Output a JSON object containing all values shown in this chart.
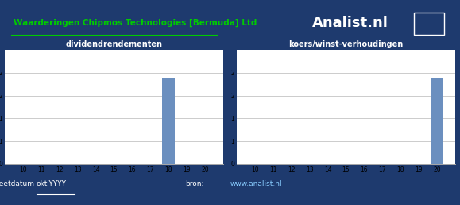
{
  "title": "Waarderingen Chipmos Technologies [Bermuda] Ltd",
  "brand": "Analist.nl",
  "chart1_title": "dividendrendementen",
  "chart2_title": "koers/winst-verhoudingen",
  "x_labels": [
    "10",
    "11",
    "12",
    "13",
    "14",
    "15",
    "16",
    "17",
    "18",
    "19",
    "20"
  ],
  "x_values": [
    10,
    11,
    12,
    13,
    14,
    15,
    16,
    17,
    18,
    19,
    20
  ],
  "div_values": [
    0,
    0,
    0,
    0,
    0,
    0,
    0,
    0,
    1.9,
    0,
    0
  ],
  "kw_values": [
    0,
    0,
    0,
    0,
    0,
    0,
    0,
    0,
    0,
    0,
    1.9
  ],
  "bar_color": "#6b8fbf",
  "bg_color": "#1e3a6e",
  "chart_bg": "#ffffff",
  "grid_color": "#cccccc",
  "title_color": "#00cc00",
  "white": "#ffffff",
  "ylim": [
    0,
    2.5
  ],
  "yticks": [
    0,
    0.5,
    1.0,
    1.5,
    2.0
  ],
  "ytick_labels": [
    "0",
    "1",
    "1",
    "2",
    "2"
  ],
  "footer_left": "meetdatum ",
  "footer_date": "okt-YYYY",
  "footer_bron": "bron:",
  "footer_url": "www.analist.nl"
}
